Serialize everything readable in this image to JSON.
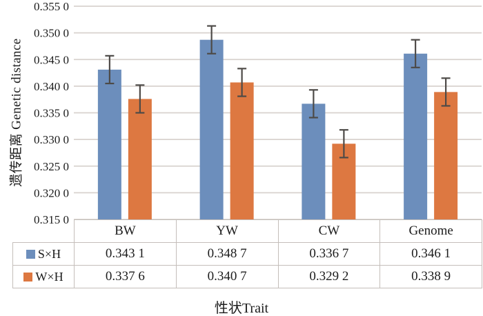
{
  "figure": {
    "y_axis_label": "遗传距离 Genetic distance",
    "x_axis_label": "性状Trait"
  },
  "chart_data": {
    "type": "bar",
    "title": "",
    "xlabel": "性状Trait",
    "ylabel": "遗传距离 Genetic distance",
    "categories": [
      "BW",
      "YW",
      "CW",
      "Genome"
    ],
    "series": [
      {
        "name": "S×H",
        "color": "#6c8ebc",
        "values": [
          0.3431,
          0.3487,
          0.3367,
          0.3461
        ],
        "errors": [
          0.0026,
          0.0026,
          0.0026,
          0.0026
        ],
        "labels": [
          "0.343 1",
          "0.348 7",
          "0.336 7",
          "0.346 1"
        ]
      },
      {
        "name": "W×H",
        "color": "#dd7841",
        "values": [
          0.3376,
          0.3407,
          0.3292,
          0.3389
        ],
        "errors": [
          0.0026,
          0.0026,
          0.0026,
          0.0026
        ],
        "labels": [
          "0.337 6",
          "0.340 7",
          "0.329 2",
          "0.338 9"
        ]
      }
    ],
    "ylim": [
      0.315,
      0.355
    ],
    "ytick_step": 0.005,
    "ytick_labels": [
      "0.315 0",
      "0.320 0",
      "0.325 0",
      "0.330 0",
      "0.335 0",
      "0.340 0",
      "0.345 0",
      "0.350 0",
      "0.355 0"
    ],
    "grid": true,
    "legend_position": "table-left",
    "error_bar_color": "#4d4a47",
    "grid_color": "#d8d2ce",
    "text_color": "#1c1c1c",
    "border_color": "#c4beba"
  }
}
